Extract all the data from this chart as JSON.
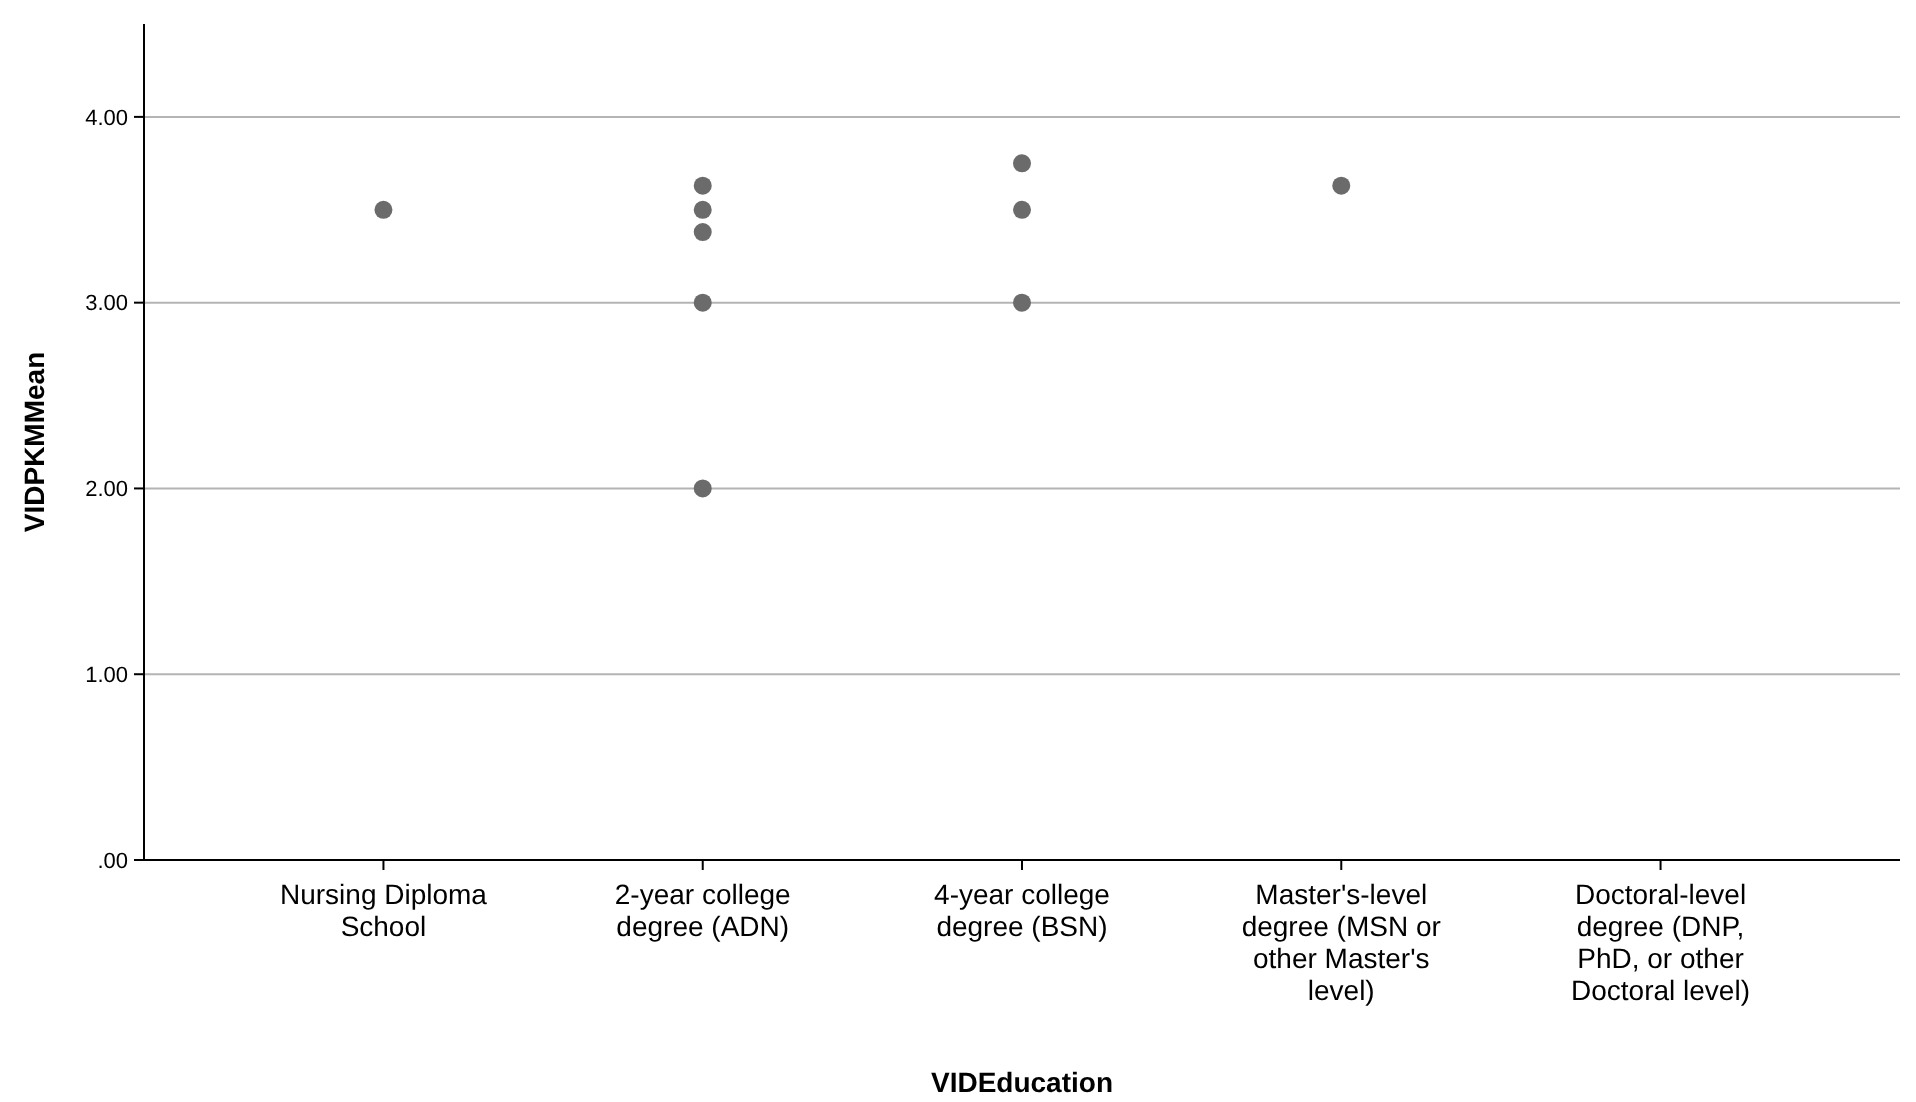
{
  "chart_data": {
    "type": "scatter",
    "xlabel": "VIDEducation",
    "ylabel": "VIDPKMMean",
    "categories": [
      "Nursing Diploma School",
      "2-year college degree (ADN)",
      "4-year college degree (BSN)",
      "Master's-level degree (MSN or other Master's level)",
      "Doctoral-level degree (DNP, PhD, or other Doctoral level)"
    ],
    "series": [
      {
        "color": "#6b6b6b",
        "x": [
          "Nursing Diploma School",
          "2-year college degree (ADN)",
          "2-year college degree (ADN)",
          "2-year college degree (ADN)",
          "2-year college degree (ADN)",
          "2-year college degree (ADN)",
          "4-year college degree (BSN)",
          "4-year college degree (BSN)",
          "4-year college degree (BSN)",
          "Master's-level degree (MSN or other Master's level)"
        ],
        "values": [
          3.5,
          3.63,
          3.5,
          3.38,
          3.0,
          2.0,
          3.75,
          3.5,
          3.0,
          3.63
        ]
      }
    ],
    "ylim": [
      0,
      4.5
    ],
    "yticks": [
      {
        "value": 0,
        "label": ".00"
      },
      {
        "value": 1,
        "label": "1.00"
      },
      {
        "value": 2,
        "label": "2.00"
      },
      {
        "value": 3,
        "label": "3.00"
      },
      {
        "value": 4,
        "label": "4.00"
      }
    ],
    "grid": "y",
    "marker": "circle"
  }
}
